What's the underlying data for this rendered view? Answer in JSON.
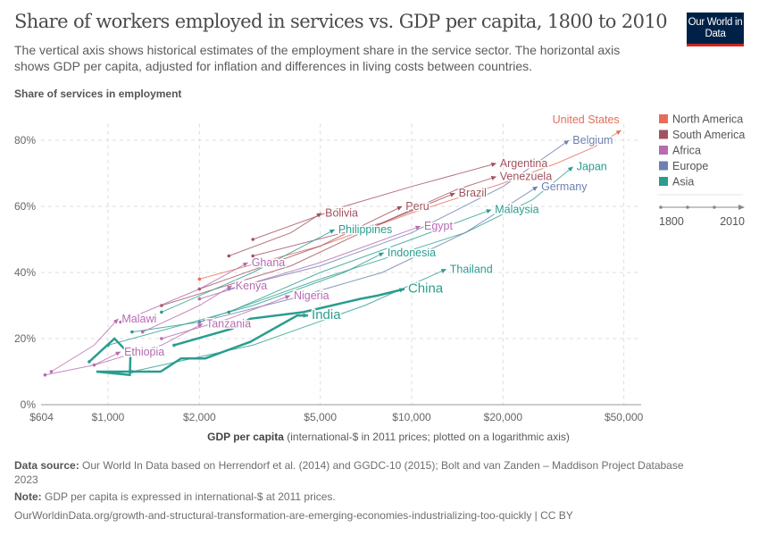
{
  "header": {
    "title": "Share of workers employed in services vs. GDP per capita, 1800 to 2010",
    "subtitle_line1": "The vertical axis shows historical estimates of the employment share in the service sector. The horizontal axis",
    "subtitle_line2": "shows GDP per capita, adjusted for inflation and differences in living costs between countries.",
    "logo": "Our World in Data"
  },
  "chart_data": {
    "type": "line",
    "title": "Share of workers employed in services vs. GDP per capita, 1800 to 2010",
    "ylabel": "Share of services in employment",
    "xlabel_bold": "GDP per capita",
    "xlabel_rest": " (international-$ in 2011 prices; plotted on a logarithmic axis)",
    "x_scale": "log",
    "xlim": [
      604,
      57000
    ],
    "ylim": [
      0,
      85
    ],
    "x_ticks": [
      {
        "v": 604,
        "label": "$604"
      },
      {
        "v": 1000,
        "label": "$1,000"
      },
      {
        "v": 2000,
        "label": "$2,000"
      },
      {
        "v": 5000,
        "label": "$5,000"
      },
      {
        "v": 10000,
        "label": "$10,000"
      },
      {
        "v": 20000,
        "label": "$20,000"
      },
      {
        "v": 50000,
        "label": "$50,000"
      }
    ],
    "y_ticks": [
      {
        "v": 0,
        "label": "0%"
      },
      {
        "v": 20,
        "label": "20%"
      },
      {
        "v": 40,
        "label": "40%"
      },
      {
        "v": 60,
        "label": "60%"
      },
      {
        "v": 80,
        "label": "80%"
      }
    ],
    "grid": true,
    "legend_placement": "right",
    "legend": [
      {
        "name": "North America",
        "color": "#E56E5A"
      },
      {
        "name": "South America",
        "color": "#A0525E"
      },
      {
        "name": "Africa",
        "color": "#B76BB0"
      },
      {
        "name": "Europe",
        "color": "#6D80B0"
      },
      {
        "name": "Asia",
        "color": "#2A9D8F"
      }
    ],
    "timeline": {
      "start": "1800",
      "end": "2010"
    },
    "series": [
      {
        "name": "United States",
        "region": "North America",
        "points": [
          [
            2000,
            38
          ],
          [
            5000,
            48
          ],
          [
            10000,
            58
          ],
          [
            20000,
            67
          ],
          [
            30000,
            73
          ],
          [
            40000,
            78
          ],
          [
            49000,
            83
          ]
        ]
      },
      {
        "name": "Belgium",
        "region": "Europe",
        "points": [
          [
            2500,
            35
          ],
          [
            5000,
            42
          ],
          [
            10000,
            52
          ],
          [
            20000,
            66
          ],
          [
            33000,
            80
          ]
        ]
      },
      {
        "name": "Japan",
        "region": "Asia",
        "points": [
          [
            1200,
            22
          ],
          [
            2000,
            25
          ],
          [
            5000,
            38
          ],
          [
            15000,
            52
          ],
          [
            25000,
            62
          ],
          [
            34000,
            72
          ]
        ]
      },
      {
        "name": "Germany",
        "region": "Europe",
        "points": [
          [
            2000,
            25
          ],
          [
            4000,
            32
          ],
          [
            8000,
            40
          ],
          [
            15000,
            52
          ],
          [
            26000,
            66
          ]
        ]
      },
      {
        "name": "Malaysia",
        "region": "Asia",
        "points": [
          [
            2500,
            28
          ],
          [
            5000,
            40
          ],
          [
            10000,
            50
          ],
          [
            18300,
            59
          ]
        ]
      },
      {
        "name": "Argentina",
        "region": "South America",
        "points": [
          [
            3000,
            50
          ],
          [
            6000,
            60
          ],
          [
            10000,
            66
          ],
          [
            19000,
            73
          ]
        ]
      },
      {
        "name": "Venezuela",
        "region": "South America",
        "points": [
          [
            3000,
            45
          ],
          [
            8000,
            55
          ],
          [
            14000,
            65
          ],
          [
            19000,
            69
          ]
        ]
      },
      {
        "name": "Brazil",
        "region": "South America",
        "points": [
          [
            1500,
            30
          ],
          [
            4000,
            42
          ],
          [
            8000,
            55
          ],
          [
            13900,
            64
          ]
        ]
      },
      {
        "name": "Peru",
        "region": "South America",
        "points": [
          [
            2000,
            35
          ],
          [
            5000,
            48
          ],
          [
            9300,
            60
          ]
        ]
      },
      {
        "name": "Bolivia",
        "region": "South America",
        "points": [
          [
            2500,
            45
          ],
          [
            4000,
            52
          ],
          [
            5050,
            58
          ]
        ]
      },
      {
        "name": "Philippines",
        "region": "Asia",
        "points": [
          [
            1500,
            28
          ],
          [
            3000,
            40
          ],
          [
            5580,
            53
          ]
        ]
      },
      {
        "name": "Egypt",
        "region": "Africa",
        "points": [
          [
            2000,
            32
          ],
          [
            5000,
            43
          ],
          [
            10700,
            54
          ]
        ]
      },
      {
        "name": "Indonesia",
        "region": "Asia",
        "points": [
          [
            1000,
            18
          ],
          [
            3000,
            30
          ],
          [
            6000,
            40
          ],
          [
            8100,
            46
          ]
        ]
      },
      {
        "name": "Thailand",
        "region": "Asia",
        "points": [
          [
            1200,
            10
          ],
          [
            3000,
            18
          ],
          [
            7000,
            30
          ],
          [
            13000,
            41
          ]
        ]
      },
      {
        "name": "China",
        "region": "Asia",
        "highlight": true,
        "points": [
          [
            1650,
            18
          ],
          [
            2560,
            23
          ],
          [
            2940,
            26
          ],
          [
            4400,
            28
          ],
          [
            6760,
            32
          ],
          [
            7720,
            33
          ],
          [
            9470,
            35
          ]
        ]
      },
      {
        "name": "India",
        "region": "Asia",
        "highlight": true,
        "points": [
          [
            867,
            13
          ],
          [
            1050,
            20
          ],
          [
            1185,
            15
          ],
          [
            1180,
            9
          ],
          [
            915,
            10
          ],
          [
            1490,
            10
          ],
          [
            1740,
            14
          ],
          [
            2090,
            14
          ],
          [
            2940,
            19
          ],
          [
            4200,
            27
          ],
          [
            4560,
            27
          ]
        ]
      },
      {
        "name": "Nigeria",
        "region": "Africa",
        "points": [
          [
            1500,
            20
          ],
          [
            2500,
            26
          ],
          [
            3980,
            33
          ]
        ]
      },
      {
        "name": "Ghana",
        "region": "Africa",
        "points": [
          [
            1100,
            25
          ],
          [
            2000,
            35
          ],
          [
            2890,
            43
          ]
        ]
      },
      {
        "name": "Kenya",
        "region": "Africa",
        "points": [
          [
            1300,
            22
          ],
          [
            2000,
            30
          ],
          [
            2560,
            36
          ]
        ]
      },
      {
        "name": "Malawi",
        "region": "Africa",
        "points": [
          [
            650,
            10
          ],
          [
            900,
            18
          ],
          [
            1080,
            26
          ]
        ]
      },
      {
        "name": "Tanzania",
        "region": "Africa",
        "points": [
          [
            900,
            12
          ],
          [
            1500,
            18
          ],
          [
            2050,
            24.5
          ]
        ]
      },
      {
        "name": "Ethiopia",
        "region": "Africa",
        "points": [
          [
            620,
            9
          ],
          [
            900,
            12
          ],
          [
            1100,
            16
          ]
        ]
      }
    ]
  },
  "footer": {
    "source_label": "Data source:",
    "source_line1": " Our World In Data based on Herrendorf et al. (2014) and GGDC-10 (2015); Bolt and van Zanden – Maddison Project Database",
    "source_line2": "2023",
    "note_label": "Note:",
    "note": " GDP per capita is expressed in international-$ at 2011 prices.",
    "url": "OurWorldinData.org/growth-and-structural-transformation-are-emerging-economies-industrializing-too-quickly | CC BY"
  }
}
